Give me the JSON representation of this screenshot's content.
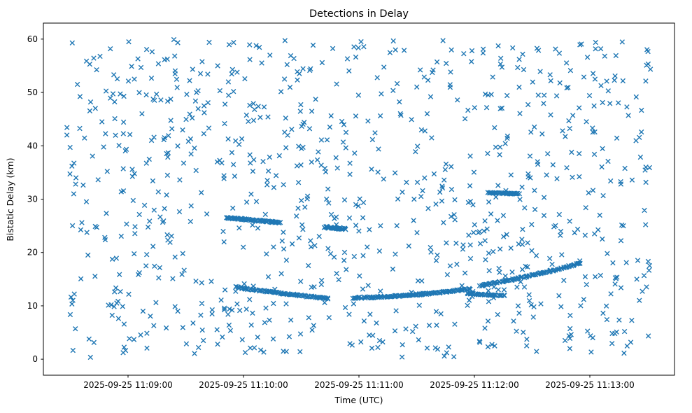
{
  "figure": {
    "background": "#ffffff"
  },
  "chart_data": {
    "type": "scatter",
    "title": "Detections in Delay",
    "xlabel": "Time (UTC)",
    "ylabel": "Bistatic Delay (km)",
    "marker": "x",
    "marker_color": "#1f77b4",
    "grid": false,
    "legend": false,
    "x_axis": {
      "unit": "seconds relative to 2025-09-25 11:09:00 UTC",
      "xlim": [
        -44,
        284
      ],
      "tick_values": [
        0,
        60,
        120,
        180,
        240
      ],
      "tick_labels": [
        "2025-09-25 11:09:00",
        "2025-09-25 11:10:00",
        "2025-09-25 11:11:00",
        "2025-09-25 11:12:00",
        "2025-09-25 11:13:00"
      ]
    },
    "y_axis": {
      "ylim": [
        -3,
        63
      ],
      "tick_values": [
        0,
        10,
        20,
        30,
        40,
        50,
        60
      ],
      "tick_labels": [
        "0",
        "10",
        "20",
        "30",
        "40",
        "50",
        "60"
      ]
    },
    "noise": {
      "count": 900,
      "seed": 7,
      "t_range": [
        -32,
        272
      ],
      "y_range": [
        0.2,
        60.0
      ]
    },
    "tracks": [
      {
        "name": "track-26km-descending",
        "t_start": 51,
        "t_end": 79,
        "y_start": 26.5,
        "y_mid": 26.1,
        "y_end": 25.6,
        "points": 70,
        "y_jitter": 0.12,
        "t_jitter": 0.5
      },
      {
        "name": "track-13-to-11km-descending",
        "t_start": 56,
        "t_end": 104,
        "y_start": 13.5,
        "y_mid": 12.2,
        "y_end": 11.4,
        "points": 95,
        "y_jitter": 0.12,
        "t_jitter": 0.5
      },
      {
        "name": "track-24.5km-cluster",
        "t_start": 102,
        "t_end": 113,
        "y_start": 24.8,
        "y_mid": 24.6,
        "y_end": 24.4,
        "points": 35,
        "y_jitter": 0.15,
        "t_jitter": 0.5
      },
      {
        "name": "track-11.5-to-13km-rising",
        "t_start": 117,
        "t_end": 178,
        "y_start": 11.5,
        "y_mid": 11.7,
        "y_end": 13.2,
        "points": 115,
        "y_jitter": 0.12,
        "t_jitter": 0.5
      },
      {
        "name": "track-12km-short",
        "t_start": 176,
        "t_end": 196,
        "y_start": 12.3,
        "y_mid": 12.1,
        "y_end": 11.9,
        "points": 40,
        "y_jitter": 0.1,
        "t_jitter": 0.5
      },
      {
        "name": "track-31km-short",
        "t_start": 187,
        "t_end": 203,
        "y_start": 31.2,
        "y_mid": 31.1,
        "y_end": 31.0,
        "points": 45,
        "y_jitter": 0.08,
        "t_jitter": 0.4
      },
      {
        "name": "track-14-to-18km-rising",
        "t_start": 183,
        "t_end": 235,
        "y_start": 13.8,
        "y_mid": 15.4,
        "y_end": 18.0,
        "points": 95,
        "y_jitter": 0.12,
        "t_jitter": 0.5
      }
    ]
  }
}
